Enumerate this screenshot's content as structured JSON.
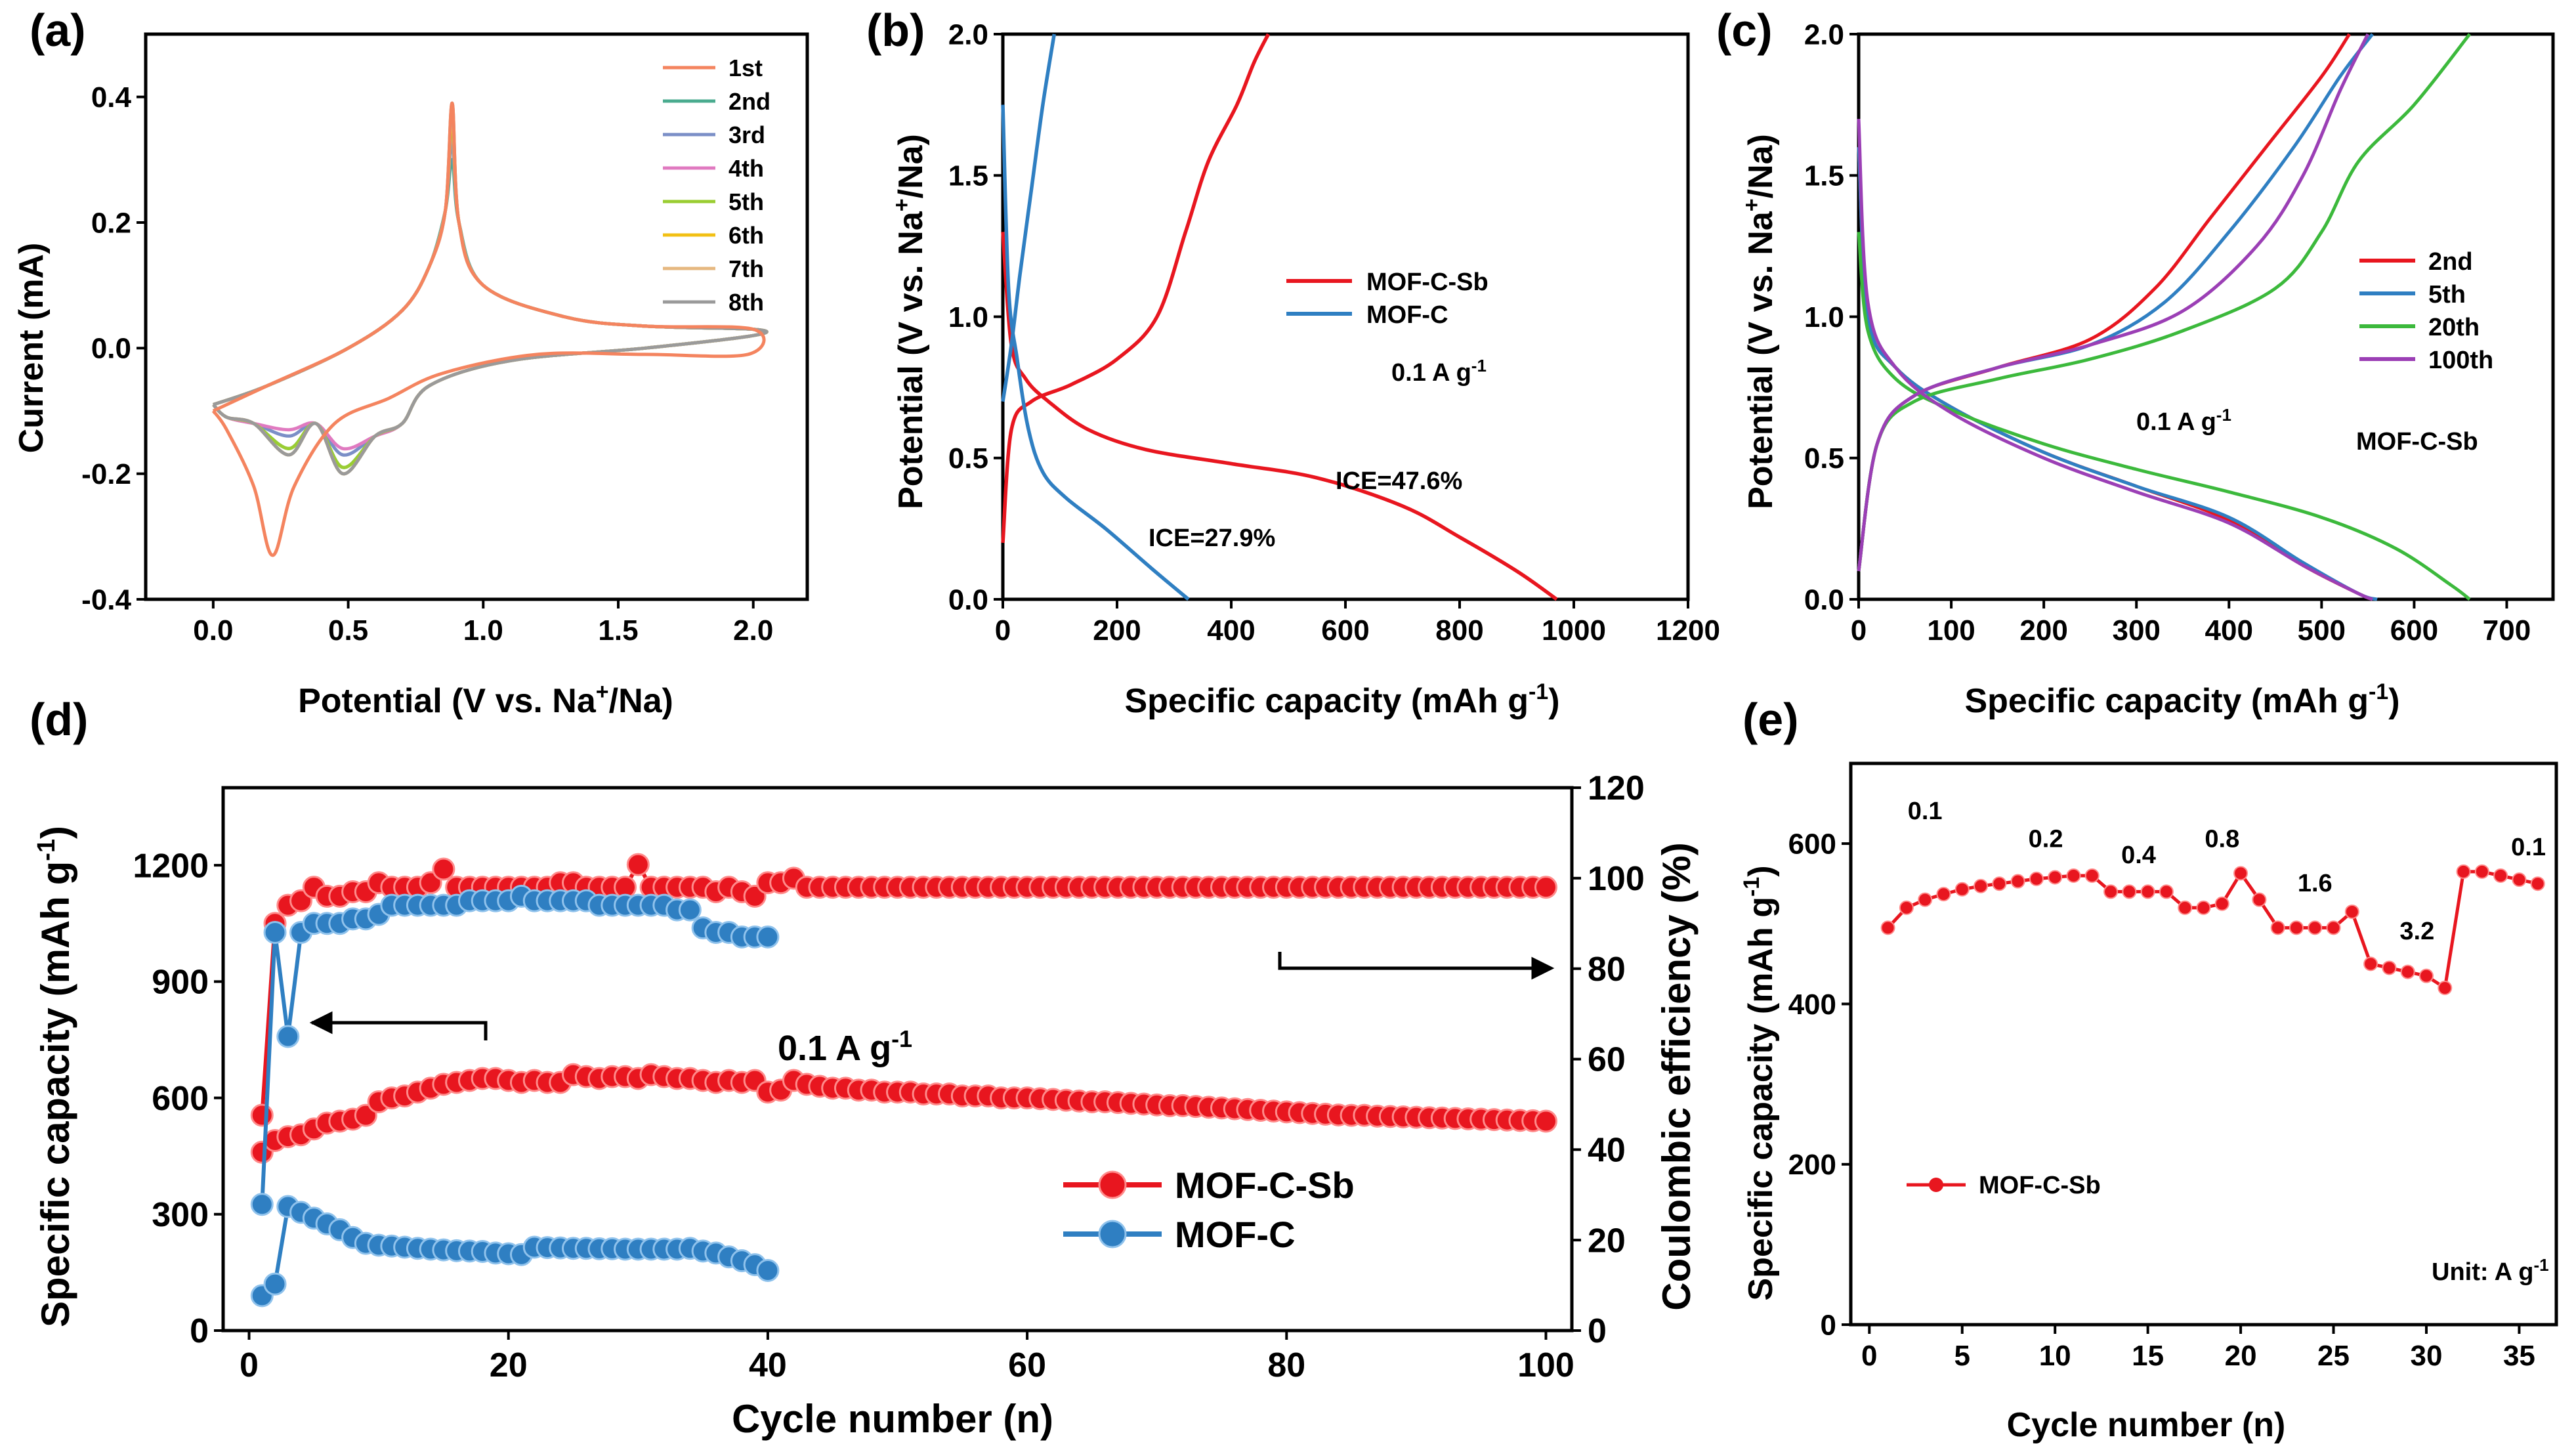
{
  "chart_data": [
    {
      "id": "a",
      "panel_label": "(a)",
      "type": "line",
      "xlabel_pre": "Potential (V vs. Na",
      "xlabel_sup": "+",
      "xlabel_post": "/Na)",
      "ylabel": "Current (mA)",
      "xlim": [
        -0.25,
        2.2
      ],
      "ylim": [
        -0.4,
        0.5
      ],
      "xticks": [
        "0.0",
        "0.5",
        "1.0",
        "1.5",
        "2.0"
      ],
      "yticks": [
        "-0.4",
        "-0.2",
        "0.0",
        "0.2",
        "0.4"
      ],
      "legend": [
        "1st",
        "2nd",
        "3rd",
        "4th",
        "5th",
        "6th",
        "7th",
        "8th"
      ],
      "colors": [
        "#f4845f",
        "#4aab8f",
        "#7b8fc7",
        "#e07ac0",
        "#9acd32",
        "#f2c014",
        "#e6b880",
        "#9a9a9a"
      ],
      "peak_ox": [
        0.39,
        0.3,
        0.33,
        0.35,
        0.36,
        0.37,
        0.38,
        0.39
      ],
      "peak_red_low": [
        -0.33,
        -0.19,
        -0.17,
        -0.16,
        -0.19,
        -0.2,
        -0.2,
        -0.2
      ]
    },
    {
      "id": "b",
      "panel_label": "(b)",
      "type": "line",
      "xlabel": "Specific capacity (mAh g",
      "xlabel_sup": "-1",
      "xlabel_post": ")",
      "ylabel_pre": "Potential (V vs. Na",
      "ylabel_sup": "+",
      "ylabel_post": "/Na)",
      "xlim": [
        0,
        1200
      ],
      "ylim": [
        0,
        2.0
      ],
      "xticks": [
        "0",
        "200",
        "400",
        "600",
        "800",
        "1000",
        "1200"
      ],
      "yticks": [
        "0.0",
        "0.5",
        "1.0",
        "1.5",
        "2.0"
      ],
      "rate_label": "0.1 A g",
      "rate_sup": "-1",
      "series": [
        {
          "name": "MOF-C-Sb",
          "color": "#e8161f",
          "discharge": [
            [
              0,
              1.3
            ],
            [
              15,
              0.9
            ],
            [
              40,
              0.78
            ],
            [
              80,
              0.7
            ],
            [
              150,
              0.6
            ],
            [
              250,
              0.53
            ],
            [
              400,
              0.48
            ],
            [
              550,
              0.43
            ],
            [
              700,
              0.33
            ],
            [
              800,
              0.22
            ],
            [
              900,
              0.1
            ],
            [
              970,
              0
            ]
          ],
          "charge": [
            [
              0,
              0.2
            ],
            [
              15,
              0.6
            ],
            [
              50,
              0.7
            ],
            [
              120,
              0.76
            ],
            [
              200,
              0.85
            ],
            [
              270,
              1.0
            ],
            [
              320,
              1.3
            ],
            [
              360,
              1.55
            ],
            [
              410,
              1.75
            ],
            [
              440,
              1.9
            ],
            [
              465,
              2.0
            ]
          ],
          "ice": "ICE=47.6%"
        },
        {
          "name": "MOF-C",
          "color": "#2f7fc2",
          "discharge": [
            [
              0,
              1.75
            ],
            [
              10,
              1.1
            ],
            [
              25,
              0.85
            ],
            [
              45,
              0.6
            ],
            [
              70,
              0.45
            ],
            [
              110,
              0.36
            ],
            [
              180,
              0.25
            ],
            [
              260,
              0.11
            ],
            [
              325,
              0
            ]
          ],
          "charge": [
            [
              0,
              0.7
            ],
            [
              15,
              0.9
            ],
            [
              30,
              1.15
            ],
            [
              50,
              1.45
            ],
            [
              70,
              1.75
            ],
            [
              90,
              2.0
            ]
          ],
          "ice": "ICE=27.9%"
        }
      ]
    },
    {
      "id": "c",
      "panel_label": "(c)",
      "type": "line",
      "xlabel": "Specific capacity (mAh g",
      "xlabel_sup": "-1",
      "xlabel_post": ")",
      "ylabel_pre": "Potential (V vs. Na",
      "ylabel_sup": "+",
      "ylabel_post": "/Na)",
      "xlim": [
        0,
        750
      ],
      "ylim": [
        0,
        2.0
      ],
      "xticks": [
        "0",
        "100",
        "200",
        "300",
        "400",
        "500",
        "600",
        "700"
      ],
      "yticks": [
        "0.0",
        "0.5",
        "1.0",
        "1.5",
        "2.0"
      ],
      "rate_label": "0.1 A g",
      "rate_sup": "-1",
      "sample_label": "MOF-C-Sb",
      "series": [
        {
          "name": "2nd",
          "color": "#e8161f",
          "discharge": [
            [
              0,
              1.6
            ],
            [
              10,
              1.0
            ],
            [
              40,
              0.82
            ],
            [
              100,
              0.68
            ],
            [
              200,
              0.52
            ],
            [
              300,
              0.4
            ],
            [
              400,
              0.28
            ],
            [
              480,
              0.12
            ],
            [
              540,
              0.02
            ],
            [
              555,
              0
            ]
          ],
          "charge": [
            [
              0,
              0.1
            ],
            [
              20,
              0.55
            ],
            [
              60,
              0.72
            ],
            [
              150,
              0.82
            ],
            [
              250,
              0.92
            ],
            [
              320,
              1.1
            ],
            [
              380,
              1.35
            ],
            [
              440,
              1.6
            ],
            [
              500,
              1.85
            ],
            [
              530,
              2.0
            ]
          ]
        },
        {
          "name": "5th",
          "color": "#2f7fc2",
          "discharge": [
            [
              0,
              1.6
            ],
            [
              10,
              1.0
            ],
            [
              40,
              0.82
            ],
            [
              100,
              0.68
            ],
            [
              200,
              0.52
            ],
            [
              300,
              0.4
            ],
            [
              400,
              0.29
            ],
            [
              480,
              0.13
            ],
            [
              540,
              0.02
            ],
            [
              560,
              0
            ]
          ],
          "charge": [
            [
              0,
              0.1
            ],
            [
              20,
              0.55
            ],
            [
              60,
              0.72
            ],
            [
              150,
              0.82
            ],
            [
              250,
              0.9
            ],
            [
              330,
              1.05
            ],
            [
              400,
              1.3
            ],
            [
              470,
              1.6
            ],
            [
              520,
              1.85
            ],
            [
              555,
              2.0
            ]
          ]
        },
        {
          "name": "20th",
          "color": "#3cb93c",
          "discharge": [
            [
              0,
              1.3
            ],
            [
              10,
              0.95
            ],
            [
              40,
              0.78
            ],
            [
              100,
              0.67
            ],
            [
              200,
              0.55
            ],
            [
              300,
              0.46
            ],
            [
              400,
              0.38
            ],
            [
              500,
              0.29
            ],
            [
              580,
              0.18
            ],
            [
              640,
              0.05
            ],
            [
              660,
              0
            ]
          ],
          "charge": [
            [
              0,
              0.1
            ],
            [
              20,
              0.55
            ],
            [
              60,
              0.7
            ],
            [
              150,
              0.78
            ],
            [
              250,
              0.85
            ],
            [
              350,
              0.95
            ],
            [
              450,
              1.1
            ],
            [
              500,
              1.3
            ],
            [
              540,
              1.55
            ],
            [
              600,
              1.75
            ],
            [
              660,
              2.0
            ]
          ]
        },
        {
          "name": "100th",
          "color": "#9b3fb5",
          "discharge": [
            [
              0,
              1.7
            ],
            [
              10,
              1.05
            ],
            [
              40,
              0.82
            ],
            [
              100,
              0.66
            ],
            [
              200,
              0.5
            ],
            [
              300,
              0.38
            ],
            [
              400,
              0.27
            ],
            [
              480,
              0.12
            ],
            [
              540,
              0.02
            ],
            [
              555,
              0
            ]
          ],
          "charge": [
            [
              0,
              0.1
            ],
            [
              20,
              0.55
            ],
            [
              60,
              0.72
            ],
            [
              150,
              0.82
            ],
            [
              250,
              0.9
            ],
            [
              350,
              1.02
            ],
            [
              430,
              1.25
            ],
            [
              480,
              1.5
            ],
            [
              520,
              1.8
            ],
            [
              550,
              2.0
            ]
          ]
        }
      ]
    },
    {
      "id": "d",
      "panel_label": "(d)",
      "type": "scatter",
      "xlabel": "Cycle number (n)",
      "ylabel": "Specific capacity (mAh g",
      "ylabel_sup": "-1",
      "ylabel_post": ")",
      "y2label": "Coulombic efficiency (%)",
      "xlim": [
        -2,
        102
      ],
      "ylim": [
        0,
        1400
      ],
      "y2lim": [
        0,
        120
      ],
      "xticks": [
        "0",
        "20",
        "40",
        "60",
        "80",
        "100"
      ],
      "yticks": [
        "0",
        "300",
        "600",
        "900",
        "1200"
      ],
      "y2ticks": [
        "0",
        "20",
        "40",
        "60",
        "80",
        "100",
        "120"
      ],
      "rate_label": "0.1 A g",
      "rate_sup": "-1",
      "legend": [
        "MOF-C-Sb",
        "MOF-C"
      ],
      "series": [
        {
          "name": "MOF-C-Sb",
          "color": "#e8161f",
          "axis": "left",
          "values": [
            460,
            490,
            500,
            505,
            520,
            535,
            540,
            545,
            555,
            590,
            600,
            605,
            615,
            625,
            635,
            640,
            645,
            650,
            650,
            645,
            640,
            645,
            640,
            640,
            660,
            655,
            650,
            655,
            655,
            650,
            660,
            655,
            650,
            650,
            645,
            640,
            645,
            640,
            645,
            615,
            620,
            645,
            635,
            630,
            625,
            625,
            620,
            620,
            615,
            615,
            615,
            610,
            610,
            610,
            605,
            605,
            605,
            600,
            600,
            600,
            598,
            596,
            594,
            592,
            590,
            590,
            588,
            586,
            584,
            582,
            580,
            580,
            578,
            576,
            574,
            572,
            570,
            568,
            566,
            564,
            562,
            560,
            558,
            556,
            555,
            555,
            553,
            552,
            551,
            550,
            549,
            548,
            547,
            546,
            545,
            544,
            543,
            542,
            541,
            540
          ]
        },
        {
          "name": "MOF-C-Sb CE",
          "color": "#e8161f",
          "axis": "right",
          "values": [
            47.6,
            90,
            94,
            95,
            98,
            96,
            96,
            97,
            97,
            99,
            98,
            98,
            98,
            99,
            102,
            98,
            98,
            98,
            98,
            98,
            98,
            98,
            98,
            99,
            99,
            98,
            98,
            98,
            98,
            103,
            98,
            98,
            98,
            98,
            98,
            97,
            98,
            97,
            96,
            99,
            99,
            100,
            98,
            98,
            98,
            98,
            98,
            98,
            98,
            98,
            98,
            98,
            98,
            98,
            98,
            98,
            98,
            98,
            98,
            98,
            98,
            98,
            98,
            98,
            98,
            98,
            98,
            98,
            98,
            98,
            98,
            98,
            98,
            98,
            98,
            98,
            98,
            98,
            98,
            98,
            98,
            98,
            98,
            98,
            98,
            98,
            98,
            98,
            98,
            98,
            98,
            98,
            98,
            98,
            98,
            98,
            98,
            98,
            98,
            98
          ]
        },
        {
          "name": "MOF-C",
          "color": "#2f7fc2",
          "axis": "left",
          "values": [
            90,
            120,
            320,
            305,
            290,
            275,
            260,
            240,
            225,
            220,
            218,
            215,
            212,
            210,
            208,
            206,
            205,
            204,
            200,
            198,
            196,
            215,
            214,
            213,
            212,
            212,
            211,
            211,
            210,
            210,
            210,
            210,
            210,
            212,
            205,
            200,
            190,
            180,
            170,
            155
          ]
        },
        {
          "name": "MOF-C CE",
          "color": "#2f7fc2",
          "axis": "right",
          "values": [
            27.9,
            88,
            65,
            88,
            90,
            90,
            90,
            91,
            91,
            92,
            94,
            94,
            94,
            94,
            94,
            94,
            95,
            95,
            95,
            95,
            96,
            95,
            95,
            95,
            95,
            95,
            94,
            94,
            94,
            94,
            94,
            94,
            93,
            93,
            89,
            88,
            88,
            87,
            87,
            87
          ]
        }
      ]
    },
    {
      "id": "e",
      "panel_label": "(e)",
      "type": "line",
      "xlabel": "Cycle number (n)",
      "ylabel": "Specific capacity (mAh g",
      "ylabel_sup": "-1",
      "ylabel_post": ")",
      "xlim": [
        -1,
        37
      ],
      "ylim": [
        0,
        700
      ],
      "xticks": [
        "0",
        "5",
        "10",
        "15",
        "20",
        "25",
        "30",
        "35"
      ],
      "yticks": [
        "0",
        "200",
        "400",
        "600"
      ],
      "legend": [
        "MOF-C-Sb"
      ],
      "unit_label": "Unit: A g",
      "unit_sup": "-1",
      "rate_annotations": [
        "0.1",
        "0.2",
        "0.4",
        "0.8",
        "1.6",
        "3.2",
        "0.1"
      ],
      "series": [
        {
          "name": "MOF-C-Sb",
          "color": "#e8161f",
          "x": [
            1,
            2,
            3,
            4,
            5,
            6,
            7,
            8,
            9,
            10,
            11,
            12,
            13,
            14,
            15,
            16,
            17,
            18,
            19,
            20,
            21,
            22,
            23,
            24,
            25,
            26,
            27,
            28,
            29,
            30,
            31,
            32,
            33,
            34,
            35,
            36
          ],
          "values": [
            495,
            520,
            530,
            537,
            543,
            547,
            550,
            553,
            556,
            558,
            560,
            560,
            540,
            540,
            540,
            540,
            520,
            520,
            525,
            563,
            530,
            495,
            495,
            495,
            495,
            515,
            450,
            445,
            440,
            435,
            420,
            565,
            565,
            560,
            555,
            550
          ]
        }
      ]
    }
  ]
}
